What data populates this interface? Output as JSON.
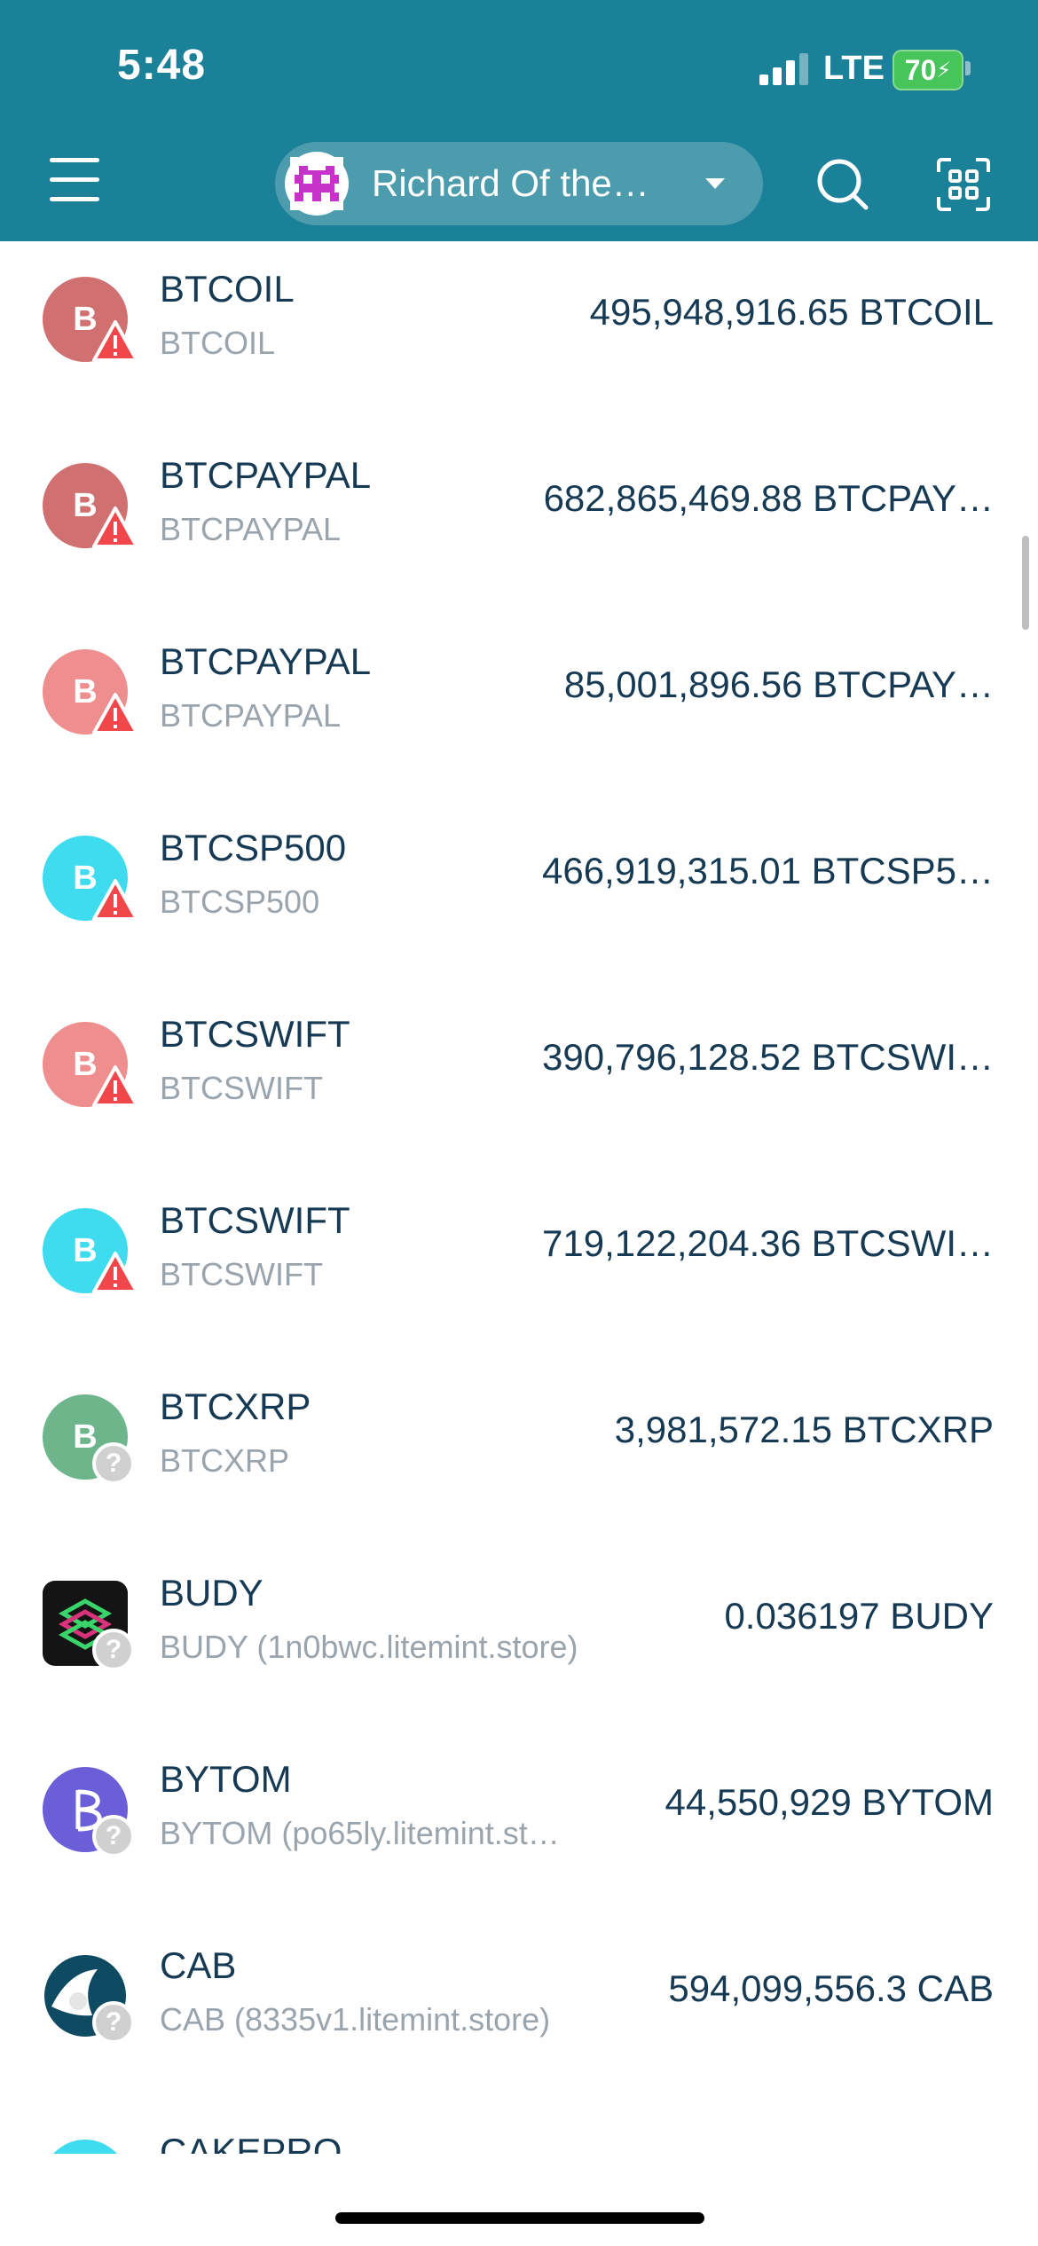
{
  "status_bar": {
    "time": "5:48",
    "network": "LTE",
    "battery": "70"
  },
  "header": {
    "account_name": "Richard Of the…",
    "menu_icon": "hamburger-icon",
    "search_icon": "search-icon",
    "scan_icon": "qr-scan-icon"
  },
  "tokens": [
    {
      "name": "BTCOIL",
      "sub": "BTCOIL",
      "balance": "495,948,916.65 BTCOIL",
      "initial": "B",
      "color": "#d17070",
      "badge": "warning"
    },
    {
      "name": "BTCPAYPAL",
      "sub": "BTCPAYPAL",
      "balance": "682,865,469.88 BTCPAY…",
      "initial": "B",
      "color": "#d17070",
      "badge": "warning"
    },
    {
      "name": "BTCPAYPAL",
      "sub": "BTCPAYPAL",
      "balance": "85,001,896.56 BTCPAY…",
      "initial": "B",
      "color": "#ee8e8e",
      "badge": "warning"
    },
    {
      "name": "BTCSP500",
      "sub": "BTCSP500",
      "balance": "466,919,315.01 BTCSP5…",
      "initial": "B",
      "color": "#3fdbef",
      "badge": "warning"
    },
    {
      "name": "BTCSWIFT",
      "sub": "BTCSWIFT",
      "balance": "390,796,128.52 BTCSWI…",
      "initial": "B",
      "color": "#ee8e8e",
      "badge": "warning"
    },
    {
      "name": "BTCSWIFT",
      "sub": "BTCSWIFT",
      "balance": "719,122,204.36 BTCSWI…",
      "initial": "B",
      "color": "#3fdbef",
      "badge": "warning"
    },
    {
      "name": "BTCXRP",
      "sub": "BTCXRP",
      "balance": "3,981,572.15 BTCXRP",
      "initial": "B",
      "color": "#6db58b",
      "badge": "unknown"
    },
    {
      "name": "BUDY",
      "sub": "BUDY (1n0bwc.litemint.store)",
      "balance": "0.036197 BUDY",
      "initial": "",
      "color": "#141414",
      "badge": "unknown"
    },
    {
      "name": "BYTOM",
      "sub": "BYTOM (po65ly.litemint.st…",
      "balance": "44,550,929 BYTOM",
      "initial": "",
      "color": "#6a5fd8",
      "badge": "unknown"
    },
    {
      "name": "CAB",
      "sub": "CAB (8335v1.litemint.store)",
      "balance": "594,099,556.3 CAB",
      "initial": "",
      "color": "#0f4a63",
      "badge": "unknown"
    },
    {
      "name": "CAKEPRO",
      "sub": "",
      "balance": "",
      "initial": "",
      "color": "#3fdbef",
      "badge": ""
    }
  ]
}
